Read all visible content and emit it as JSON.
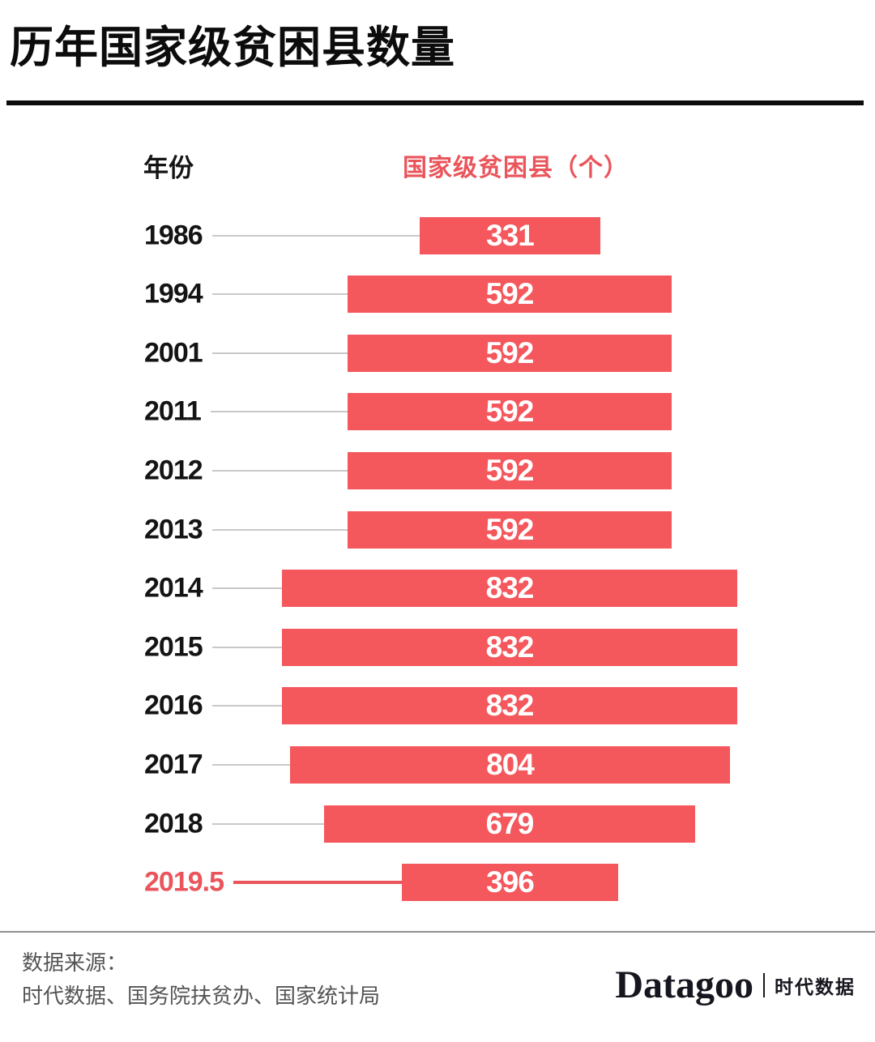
{
  "page": {
    "title": "历年国家级贫困县数量"
  },
  "table_header": {
    "year_label": "年份",
    "value_label": "国家级贫困县（个）"
  },
  "chart_data": {
    "type": "bar",
    "orientation": "horizontal-centered",
    "title": "历年国家级贫困县数量",
    "xlabel": "年份",
    "ylabel": "国家级贫困县（个）",
    "categories": [
      "1986",
      "1994",
      "2001",
      "2011",
      "2012",
      "2013",
      "2014",
      "2015",
      "2016",
      "2017",
      "2018",
      "2019.5"
    ],
    "values": [
      331,
      592,
      592,
      592,
      592,
      592,
      832,
      832,
      832,
      804,
      679,
      396
    ],
    "highlight_category": "2019.5",
    "value_labels_shown": true,
    "grid": false,
    "legend": false
  },
  "footer": {
    "source_label": "数据来源：",
    "sources": "时代数据、国务院扶贫办、国家统计局",
    "logo_text": "Datagoo",
    "logo_suffix": "时代数据"
  },
  "colors": {
    "bar": "#f4575c",
    "accent_text": "#ea555b",
    "connector": "#c9c9c9",
    "title_text": "#0c0c0c",
    "footer_text": "#545454"
  }
}
